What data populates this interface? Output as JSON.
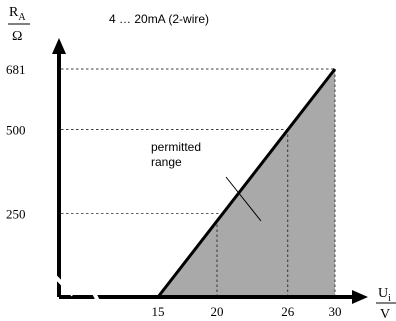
{
  "chart_data": {
    "type": "area",
    "title": "4 … 20mA (2-wire)",
    "ylabel": {
      "main": "R",
      "sub": "A",
      "unit": "Ω"
    },
    "xlabel": {
      "main": "U",
      "sub": "i",
      "unit": "V"
    },
    "x_ticks": [
      "15",
      "20",
      "26",
      "30"
    ],
    "y_ticks": [
      "250",
      "500",
      "681"
    ],
    "x_tick_values": [
      15,
      20,
      26,
      30
    ],
    "y_tick_values": [
      250,
      500,
      681
    ],
    "xlim": [
      15,
      30
    ],
    "ylim": [
      0,
      681
    ],
    "line": {
      "x": [
        15,
        30
      ],
      "y": [
        0,
        681
      ]
    },
    "annotation": {
      "line1": "permitted",
      "line2": "range"
    },
    "colors": {
      "fill": "#a9a9a9",
      "line": "#000000",
      "axis": "#000000"
    }
  }
}
